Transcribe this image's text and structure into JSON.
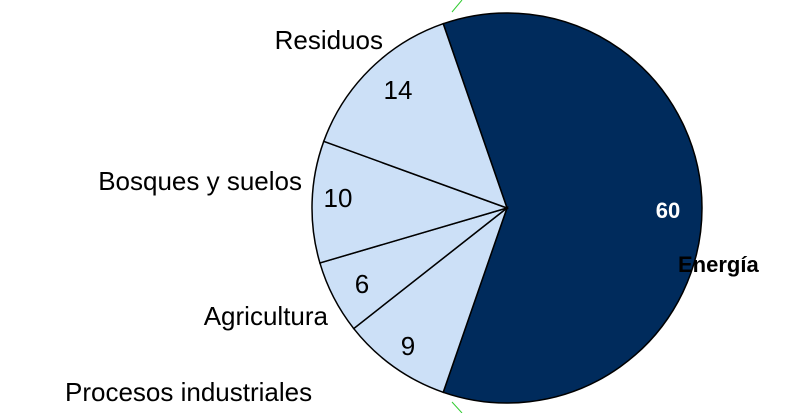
{
  "chart_data": {
    "type": "pie",
    "categories": [
      "Energía",
      "Procesos industriales",
      "Agricultura",
      "Bosques y suelos",
      "Residuos"
    ],
    "values": [
      60,
      9,
      6,
      10,
      14
    ],
    "colors": [
      "#002b5c",
      "#cce0f7",
      "#cce0f7",
      "#cce0f7",
      "#cce0f7"
    ]
  }
}
